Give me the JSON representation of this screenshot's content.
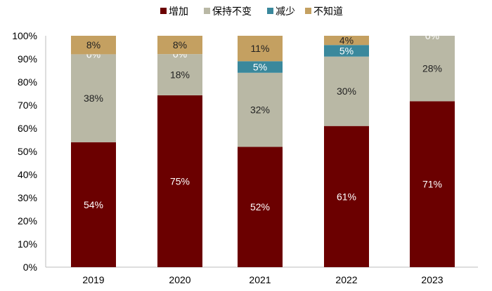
{
  "chart_data": {
    "type": "bar",
    "stacked": true,
    "categories": [
      "2019",
      "2020",
      "2021",
      "2022",
      "2023"
    ],
    "series": [
      {
        "name": "增加",
        "color": "#6b0000",
        "values": [
          54,
          75,
          52,
          61,
          71
        ],
        "labels": [
          "54%",
          "75%",
          "52%",
          "61%",
          "71%"
        ]
      },
      {
        "name": "保持不变",
        "color": "#b9b8a5",
        "values": [
          38,
          18,
          32,
          30,
          28
        ],
        "labels": [
          "38%",
          "18%",
          "32%",
          "30%",
          "28%"
        ]
      },
      {
        "name": "减少",
        "color": "#3a889c",
        "values": [
          0,
          0,
          5,
          5,
          0
        ],
        "labels": [
          "0%",
          "0%",
          "5%",
          "5%",
          "0%"
        ]
      },
      {
        "name": "不知道",
        "color": "#c4a061",
        "values": [
          8,
          8,
          11,
          4,
          0
        ],
        "labels": [
          "8%",
          "8%",
          "11%",
          "4%",
          ""
        ]
      }
    ],
    "yticks": [
      "0%",
      "10%",
      "20%",
      "30%",
      "40%",
      "50%",
      "60%",
      "70%",
      "80%",
      "90%",
      "100%"
    ],
    "ylim": [
      0,
      100
    ],
    "grid": false,
    "legend": "top"
  }
}
